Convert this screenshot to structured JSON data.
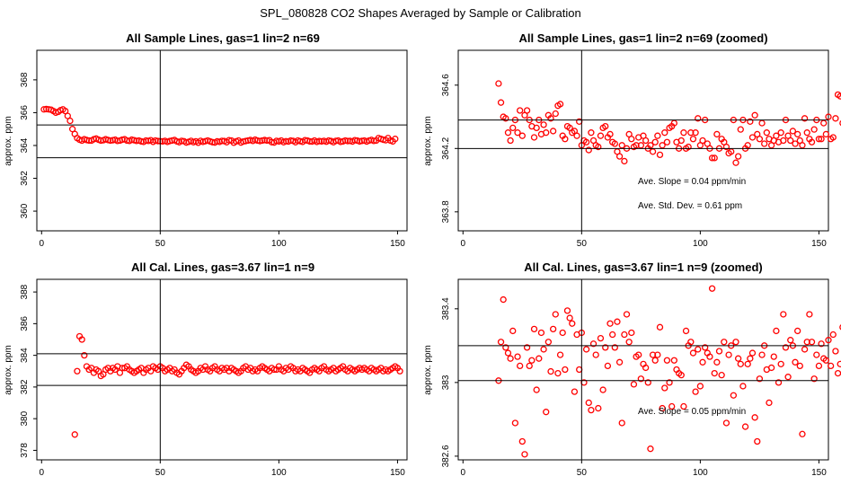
{
  "figure_title": "SPL_080828  CO2 Shapes Averaged by Sample or Calibration",
  "colors": {
    "points": "#ff0000",
    "lines": "#000000",
    "background": "#ffffff"
  },
  "chart_data": [
    {
      "type": "scatter",
      "title": "All Sample Lines, gas=1 lin=2 n=69",
      "xlabel": "",
      "ylabel": "approx. ppm",
      "xlim": [
        -2,
        154
      ],
      "ylim": [
        358.8,
        369.8
      ],
      "xticks": [
        0,
        50,
        100,
        150
      ],
      "yticks": [
        360,
        362,
        364,
        366,
        368
      ],
      "vline": 50,
      "hlines": [
        363.25,
        365.25
      ],
      "annotations": [],
      "y": [
        366.2,
        366.22,
        366.2,
        366.18,
        366.1,
        366.0,
        366.05,
        366.15,
        366.2,
        366.1,
        365.8,
        365.5,
        365.0,
        364.7,
        364.45,
        364.35,
        364.3,
        364.38,
        364.33,
        364.3,
        364.3,
        364.38,
        364.42,
        364.35,
        364.3,
        364.32,
        364.38,
        364.33,
        364.3,
        364.32,
        364.35,
        364.28,
        364.3,
        364.35,
        364.38,
        364.3,
        364.28,
        364.35,
        364.32,
        364.28,
        364.3,
        364.25,
        364.22,
        364.3,
        364.28,
        364.32,
        364.22,
        364.3,
        364.27,
        364.26,
        364.25,
        364.28,
        364.22,
        364.27,
        364.3,
        364.33,
        364.25,
        364.2,
        364.28,
        364.26,
        364.18,
        364.22,
        364.28,
        364.2,
        364.25,
        364.17,
        364.28,
        364.22,
        364.26,
        364.3,
        364.25,
        364.2,
        364.18,
        364.25,
        364.22,
        364.28,
        364.27,
        364.2,
        364.32,
        364.3,
        364.17,
        364.25,
        364.3,
        364.18,
        364.24,
        364.27,
        364.3,
        364.33,
        364.28,
        364.35,
        364.3,
        364.27,
        364.3,
        364.33,
        364.3,
        364.32,
        364.2,
        364.18,
        364.28,
        364.25,
        364.3,
        364.2,
        364.26,
        364.24,
        364.3,
        364.28,
        364.2,
        364.3,
        364.26,
        364.22,
        364.32,
        364.3,
        364.25,
        364.24,
        364.3,
        364.22,
        364.27,
        364.25,
        364.28,
        364.23,
        364.3,
        364.27,
        364.2,
        364.28,
        364.3,
        364.22,
        364.25,
        364.3,
        364.27,
        364.28,
        364.24,
        364.32,
        364.3,
        364.25,
        364.28,
        364.3,
        364.24,
        364.3,
        364.34,
        364.28,
        364.3,
        364.45,
        364.4,
        364.35,
        364.32,
        364.45,
        364.3,
        364.25,
        364.4
      ]
    },
    {
      "type": "scatter",
      "title": "All Sample Lines, gas=1 lin=2 n=69 (zoomed)",
      "xlabel": "",
      "ylabel": "approx. ppm",
      "xlim": [
        -2,
        154
      ],
      "ylim": [
        363.68,
        364.82
      ],
      "xticks": [
        0,
        50,
        100,
        150
      ],
      "yticks": [
        363.8,
        364.2,
        364.6
      ],
      "vline": 50,
      "hlines": [
        364.2,
        364.38
      ],
      "annotations": [
        "Ave. Slope =  0.04  ppm/min",
        "Ave. Std. Dev. =  0.61  ppm"
      ],
      "x_start": 15,
      "y": [
        364.61,
        364.49,
        364.4,
        364.39,
        364.3,
        364.25,
        364.33,
        364.38,
        364.3,
        364.44,
        364.28,
        364.41,
        364.44,
        364.38,
        364.34,
        364.27,
        364.33,
        364.38,
        364.29,
        364.35,
        364.3,
        364.41,
        364.39,
        364.31,
        364.42,
        364.47,
        364.48,
        364.28,
        364.26,
        364.34,
        364.33,
        364.3,
        364.31,
        364.28,
        364.37,
        364.22,
        364.25,
        364.24,
        364.19,
        364.3,
        364.25,
        364.22,
        364.21,
        364.28,
        364.33,
        364.34,
        364.27,
        364.29,
        364.24,
        364.23,
        364.18,
        364.15,
        364.22,
        364.12,
        364.2,
        364.29,
        364.26,
        364.21,
        364.22,
        364.27,
        364.22,
        364.28,
        364.25,
        364.2,
        364.22,
        364.18,
        364.24,
        364.28,
        364.16,
        364.22,
        364.3,
        364.24,
        364.33,
        364.34,
        364.36,
        364.24,
        364.2,
        364.25,
        364.3,
        364.2,
        364.21,
        364.3,
        364.26,
        364.3,
        364.39,
        364.22,
        364.25,
        364.38,
        364.23,
        364.2,
        364.14,
        364.14,
        364.29,
        364.2,
        364.26,
        364.24,
        364.21,
        364.17,
        364.18,
        364.38,
        364.11,
        364.15,
        364.32,
        364.38,
        364.2,
        364.22,
        364.37,
        364.27,
        364.41,
        364.29,
        364.26,
        364.36,
        364.23,
        364.3,
        364.26,
        364.22,
        364.25,
        364.28,
        364.24,
        364.3,
        364.25,
        364.38,
        364.28,
        364.25,
        364.31,
        364.23,
        364.29,
        364.25,
        364.22,
        364.39,
        364.3,
        364.26,
        364.24,
        364.32,
        364.38,
        364.26,
        364.26,
        364.36,
        364.29,
        364.4,
        364.26,
        364.27,
        364.39,
        364.54,
        364.53,
        364.36,
        364.22,
        364.22,
        364.4
      ]
    },
    {
      "type": "scatter",
      "title": "All Cal. Lines, gas=3.67 lin=1 n=9",
      "xlabel": "",
      "ylabel": "approx. ppm",
      "xlim": [
        -2,
        154
      ],
      "ylim": [
        377.4,
        388.8
      ],
      "xticks": [
        0,
        50,
        100,
        150
      ],
      "yticks": [
        378,
        380,
        382,
        384,
        386,
        388
      ],
      "vline": 50,
      "hlines": [
        382.1,
        384.1
      ],
      "annotations": [],
      "x_start": 14,
      "y": [
        379.0,
        383.0,
        385.2,
        385.0,
        384.0,
        383.3,
        383.1,
        383.2,
        382.9,
        383.1,
        383.0,
        382.7,
        382.8,
        383.1,
        383.2,
        383.0,
        383.2,
        383.1,
        383.3,
        382.9,
        383.2,
        383.2,
        383.3,
        383.1,
        383.0,
        382.9,
        383.0,
        383.1,
        383.2,
        382.9,
        383.1,
        383.2,
        383.0,
        383.3,
        383.2,
        383.1,
        383.3,
        383.2,
        383.0,
        383.1,
        383.2,
        383.0,
        383.1,
        382.9,
        382.8,
        383.0,
        383.2,
        383.4,
        383.3,
        383.1,
        383.0,
        382.9,
        383.0,
        383.2,
        383.1,
        383.3,
        383.1,
        383.0,
        383.2,
        383.3,
        383.1,
        383.0,
        383.2,
        383.1,
        383.2,
        383.0,
        383.2,
        383.1,
        383.0,
        382.9,
        383.0,
        383.2,
        383.3,
        383.1,
        383.2,
        383.0,
        383.1,
        383.0,
        383.2,
        383.3,
        383.2,
        383.1,
        383.0,
        383.2,
        383.1,
        383.1,
        383.3,
        383.1,
        383.0,
        383.2,
        383.1,
        383.3,
        383.2,
        383.0,
        383.1,
        383.0,
        383.2,
        383.1,
        383.0,
        382.9,
        383.1,
        383.2,
        383.1,
        383.0,
        383.2,
        383.3,
        383.1,
        383.0,
        383.1,
        383.2,
        383.0,
        383.1,
        383.2,
        383.3,
        383.1,
        383.0,
        383.2,
        383.1,
        383.0,
        383.1,
        383.2,
        383.1,
        383.2,
        383.1,
        383.0,
        383.2,
        383.1,
        383.0,
        383.1,
        383.2,
        383.0,
        383.1,
        383.0,
        383.1,
        383.2,
        383.3,
        383.2,
        383.0
      ]
    },
    {
      "type": "scatter",
      "title": "All Cal. Lines, gas=3.67 lin=1 n=9 (zoomed)",
      "xlabel": "",
      "ylabel": "approx. ppm",
      "xlim": [
        -2,
        154
      ],
      "ylim": [
        382.58,
        383.56
      ],
      "xticks": [
        0,
        50,
        100,
        150
      ],
      "yticks": [
        382.6,
        383.0,
        383.4
      ],
      "vline": 50,
      "hlines": [
        383.01,
        383.2
      ],
      "annotations": [
        "Ave. Slope =  0.05  ppm/min"
      ],
      "x_start": 15,
      "y": [
        383.01,
        383.22,
        383.45,
        383.19,
        383.16,
        383.13,
        383.28,
        382.78,
        383.14,
        383.09,
        382.68,
        382.61,
        383.19,
        383.09,
        383.12,
        383.29,
        382.96,
        383.13,
        383.27,
        383.18,
        382.84,
        383.22,
        383.06,
        383.29,
        383.37,
        383.05,
        383.15,
        383.27,
        383.07,
        383.39,
        383.35,
        383.32,
        382.95,
        383.26,
        383.07,
        383.27,
        383.0,
        383.18,
        382.89,
        382.85,
        383.21,
        383.15,
        382.86,
        383.24,
        382.96,
        383.19,
        383.09,
        383.32,
        383.26,
        383.19,
        383.33,
        383.11,
        382.78,
        383.26,
        383.37,
        383.22,
        383.27,
        382.99,
        383.14,
        383.15,
        383.02,
        383.1,
        383.08,
        383.0,
        382.64,
        383.15,
        383.12,
        383.15,
        383.3,
        382.86,
        382.97,
        383.12,
        383.0,
        382.87,
        383.12,
        383.07,
        383.05,
        383.04,
        382.87,
        383.28,
        383.2,
        383.22,
        383.16,
        382.95,
        383.18,
        382.98,
        383.11,
        383.19,
        383.16,
        383.14,
        383.51,
        383.05,
        383.11,
        383.17,
        383.04,
        383.22,
        382.78,
        383.15,
        383.2,
        382.93,
        383.22,
        383.13,
        383.1,
        382.98,
        382.76,
        383.1,
        383.13,
        383.16,
        382.81,
        382.68,
        383.02,
        383.15,
        383.2,
        383.07,
        382.89,
        383.08,
        383.14,
        383.28,
        383.0,
        383.1,
        383.37,
        383.19,
        383.03,
        383.23,
        383.2,
        383.11,
        383.28,
        383.09,
        382.72,
        383.18,
        383.22,
        383.37,
        383.22,
        383.02,
        383.15,
        383.09,
        383.21,
        383.13,
        383.12,
        383.23,
        383.09,
        383.26,
        383.17,
        383.05,
        383.1,
        383.3,
        383.12,
        383.16,
        383.24,
        383.17,
        383.0,
        383.04,
        383.14,
        383.26,
        383.29,
        383.16,
        383.07,
        383.06,
        383.2,
        383.04,
        383.18,
        383.26,
        383.37,
        383.03,
        383.16,
        383.03,
        383.09,
        383.31
      ]
    }
  ]
}
